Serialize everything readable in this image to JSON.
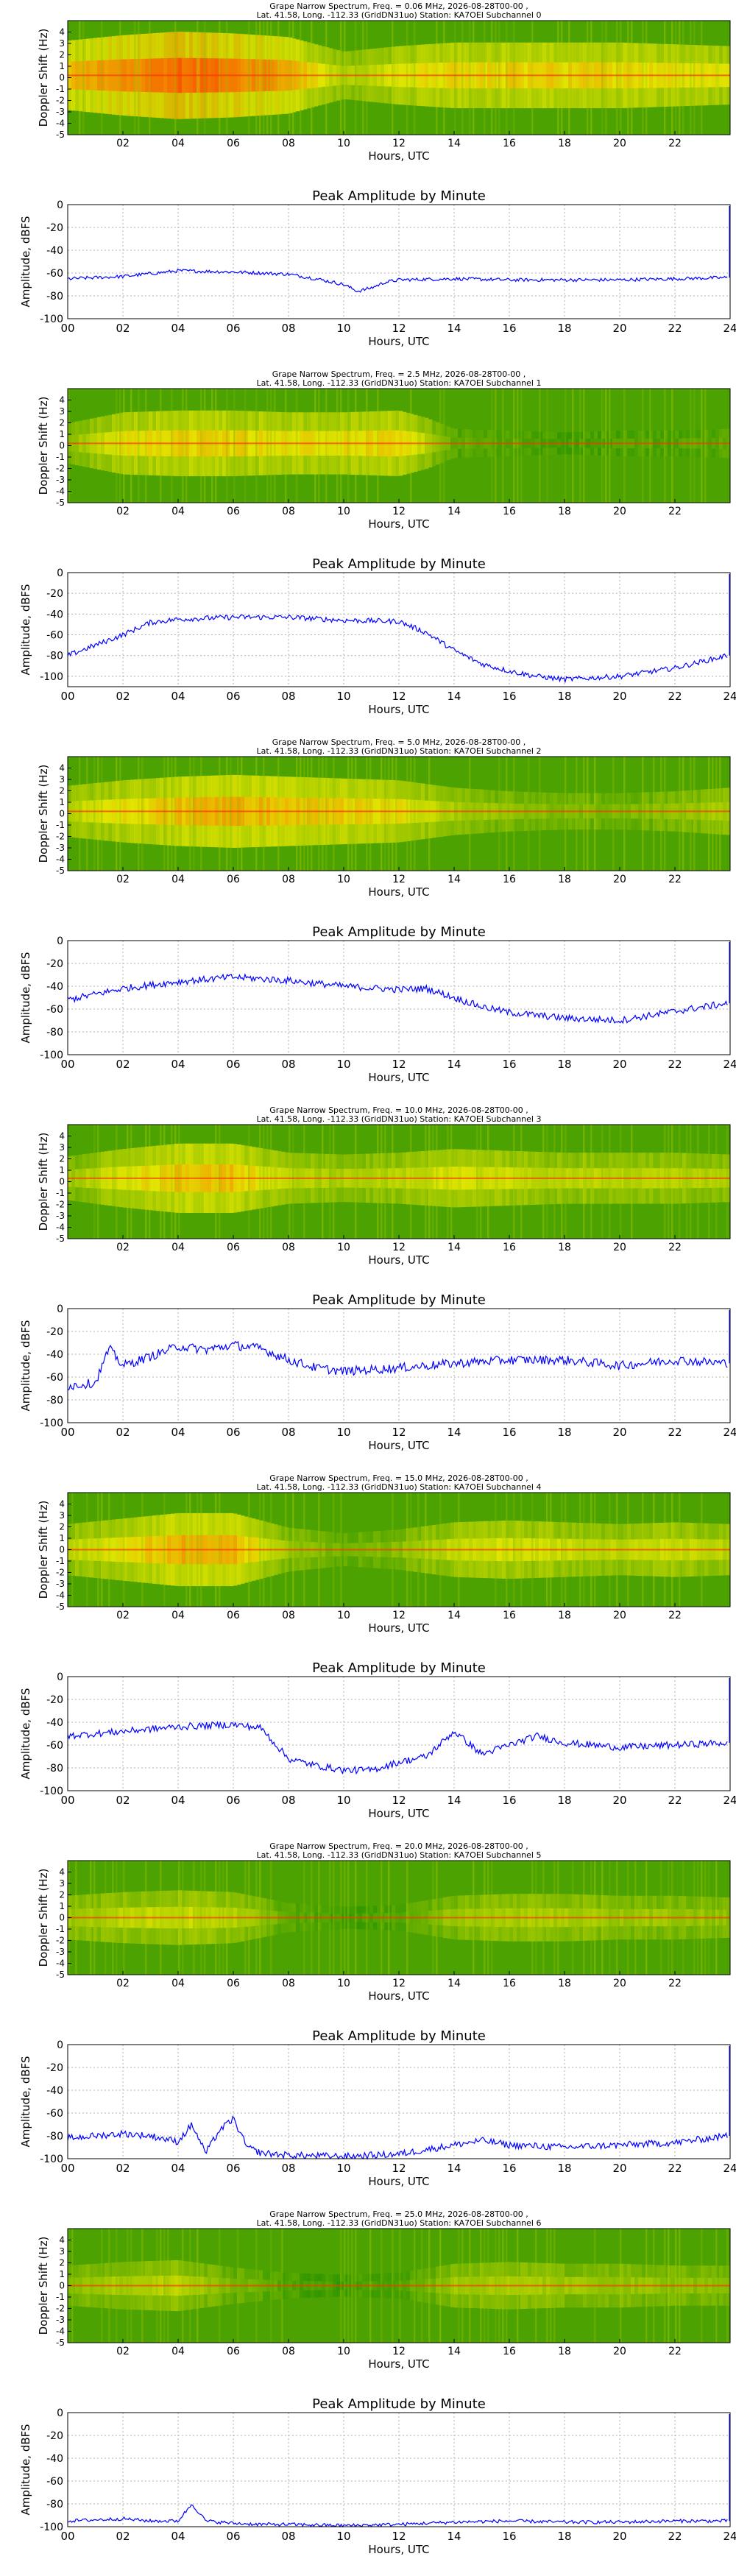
{
  "colors": {
    "line": "#0000ff",
    "grid": "#b0b0b0",
    "spec_low": "#1f8f00",
    "spec_mid": "#e8e800",
    "spec_high": "#ff2000"
  },
  "chart_data": [
    {
      "type": "heatmap",
      "title_line1": "Grape Narrow Spectrum, Freq. = 0.06 MHz, 2026-08-28T00-00 ,",
      "title_line2": "Lat.  41.58, Long. -112.33 (GridDN31uo) Station: KA7OEI Subchannel 0",
      "xlabel": "Hours, UTC",
      "ylabel": "Doppler Shift (Hz)",
      "xticks": [
        "02",
        "04",
        "06",
        "08",
        "10",
        "12",
        "14",
        "16",
        "18",
        "20",
        "22"
      ],
      "yticks": [
        "4",
        "3",
        "2",
        "1",
        "0",
        "-1",
        "-2",
        "-3",
        "-4",
        "-5"
      ],
      "xlim": [
        0,
        24
      ],
      "ylim": [
        -5,
        5
      ],
      "carrier_hz": 0.2,
      "activity": [
        [
          0,
          0.7
        ],
        [
          2,
          0.85
        ],
        [
          4,
          0.95
        ],
        [
          6,
          0.9
        ],
        [
          8,
          0.8
        ],
        [
          10,
          0.4
        ],
        [
          12,
          0.55
        ],
        [
          14,
          0.65
        ],
        [
          16,
          0.65
        ],
        [
          18,
          0.65
        ],
        [
          20,
          0.65
        ],
        [
          22,
          0.6
        ],
        [
          24,
          0.55
        ]
      ]
    },
    {
      "type": "line",
      "title": "Peak Amplitude by Minute",
      "xlabel": "Hours, UTC",
      "ylabel": "Amplitude, dBFS",
      "xticks": [
        "00",
        "02",
        "04",
        "06",
        "08",
        "10",
        "12",
        "14",
        "16",
        "18",
        "20",
        "22",
        "24"
      ],
      "yticks": [
        "0",
        "-20",
        "-40",
        "-60",
        "-80",
        "-100"
      ],
      "xlim": [
        0,
        24
      ],
      "ylim": [
        -100,
        0
      ],
      "series": [
        {
          "x": [
            0,
            2,
            4,
            6,
            8,
            9,
            10,
            10.5,
            11,
            11.5,
            12,
            14,
            16,
            18,
            20,
            22,
            23.9
          ],
          "values": [
            -65,
            -63,
            -58,
            -59,
            -61,
            -65,
            -70,
            -76,
            -73,
            -68,
            -66,
            -65,
            -66,
            -66,
            -66,
            -65,
            -64
          ],
          "noise": 1.5
        }
      ]
    },
    {
      "type": "heatmap",
      "title_line1": "Grape Narrow Spectrum, Freq. = 2.5 MHz, 2026-08-28T00-00 ,",
      "title_line2": "Lat.  41.58, Long. -112.33 (GridDN31uo) Station: KA7OEI Subchannel 1",
      "xlabel": "Hours, UTC",
      "ylabel": "Doppler Shift (Hz)",
      "xticks": [
        "02",
        "04",
        "06",
        "08",
        "10",
        "12",
        "14",
        "16",
        "18",
        "20",
        "22"
      ],
      "yticks": [
        "4",
        "3",
        "2",
        "1",
        "0",
        "-1",
        "-2",
        "-3",
        "-4",
        "-5"
      ],
      "xlim": [
        0,
        24
      ],
      "ylim": [
        -5,
        5
      ],
      "carrier_hz": 0.2,
      "activity": [
        [
          0,
          0.3
        ],
        [
          1,
          0.45
        ],
        [
          2,
          0.6
        ],
        [
          4,
          0.65
        ],
        [
          6,
          0.65
        ],
        [
          8,
          0.6
        ],
        [
          10,
          0.6
        ],
        [
          12,
          0.65
        ],
        [
          13,
          0.45
        ],
        [
          14,
          0.15
        ],
        [
          16,
          0.1
        ],
        [
          18,
          0.05
        ],
        [
          20,
          0.1
        ],
        [
          22,
          0.1
        ],
        [
          24,
          0.15
        ]
      ]
    },
    {
      "type": "line",
      "title": "Peak Amplitude by Minute",
      "xlabel": "Hours, UTC",
      "ylabel": "Amplitude, dBFS",
      "xticks": [
        "00",
        "02",
        "04",
        "06",
        "08",
        "10",
        "12",
        "14",
        "16",
        "18",
        "20",
        "22",
        "24"
      ],
      "yticks": [
        "0",
        "-20",
        "-40",
        "-60",
        "-80",
        "-100"
      ],
      "xlim": [
        0,
        24
      ],
      "ylim": [
        -110,
        0
      ],
      "series": [
        {
          "x": [
            0,
            1,
            2,
            3,
            4,
            6,
            8,
            10,
            12,
            13,
            14,
            15,
            16,
            17,
            18,
            20,
            22,
            23.9
          ],
          "values": [
            -80,
            -70,
            -60,
            -48,
            -45,
            -43,
            -43,
            -46,
            -47,
            -58,
            -75,
            -88,
            -95,
            -100,
            -103,
            -100,
            -92,
            -80
          ],
          "noise": 2.5
        }
      ]
    },
    {
      "type": "heatmap",
      "title_line1": "Grape Narrow Spectrum, Freq. = 5.0 MHz, 2026-08-28T00-00 ,",
      "title_line2": "Lat.  41.58, Long. -112.33 (GridDN31uo) Station: KA7OEI Subchannel 2",
      "xlabel": "Hours, UTC",
      "ylabel": "Doppler Shift (Hz)",
      "xticks": [
        "02",
        "04",
        "06",
        "08",
        "10",
        "12",
        "14",
        "16",
        "18",
        "20",
        "22"
      ],
      "yticks": [
        "4",
        "3",
        "2",
        "1",
        "0",
        "-1",
        "-2",
        "-3",
        "-4",
        "-5"
      ],
      "xlim": [
        0,
        24
      ],
      "ylim": [
        -5,
        5
      ],
      "carrier_hz": 0.2,
      "activity": [
        [
          0,
          0.45
        ],
        [
          2,
          0.6
        ],
        [
          4,
          0.7
        ],
        [
          6,
          0.75
        ],
        [
          8,
          0.7
        ],
        [
          10,
          0.65
        ],
        [
          12,
          0.6
        ],
        [
          14,
          0.4
        ],
        [
          16,
          0.3
        ],
        [
          18,
          0.25
        ],
        [
          20,
          0.25
        ],
        [
          22,
          0.3
        ],
        [
          24,
          0.4
        ]
      ]
    },
    {
      "type": "line",
      "title": "Peak Amplitude by Minute",
      "xlabel": "Hours, UTC",
      "ylabel": "Amplitude, dBFS",
      "xticks": [
        "00",
        "02",
        "04",
        "06",
        "08",
        "10",
        "12",
        "14",
        "16",
        "18",
        "20",
        "22",
        "24"
      ],
      "yticks": [
        "0",
        "-20",
        "-40",
        "-60",
        "-80",
        "-100"
      ],
      "xlim": [
        0,
        24
      ],
      "ylim": [
        -100,
        0
      ],
      "series": [
        {
          "x": [
            0,
            2,
            4,
            6,
            8,
            10,
            12,
            13,
            14,
            15,
            16,
            18,
            20,
            22,
            23.9
          ],
          "values": [
            -52,
            -42,
            -36,
            -32,
            -35,
            -40,
            -43,
            -42,
            -50,
            -58,
            -63,
            -68,
            -70,
            -62,
            -55
          ],
          "noise": 3
        }
      ]
    },
    {
      "type": "heatmap",
      "title_line1": "Grape Narrow Spectrum, Freq. = 10.0 MHz, 2026-08-28T00-00 ,",
      "title_line2": "Lat.  41.58, Long. -112.33 (GridDN31uo) Station: KA7OEI Subchannel 3",
      "xlabel": "Hours, UTC",
      "ylabel": "Doppler Shift (Hz)",
      "xticks": [
        "02",
        "04",
        "06",
        "08",
        "10",
        "12",
        "14",
        "16",
        "18",
        "20",
        "22"
      ],
      "yticks": [
        "4",
        "3",
        "2",
        "1",
        "0",
        "-1",
        "-2",
        "-3",
        "-4",
        "-5"
      ],
      "xlim": [
        0,
        24
      ],
      "ylim": [
        -5,
        5
      ],
      "carrier_hz": 0.3,
      "activity": [
        [
          0,
          0.35
        ],
        [
          2,
          0.55
        ],
        [
          4,
          0.7
        ],
        [
          6,
          0.7
        ],
        [
          8,
          0.45
        ],
        [
          10,
          0.4
        ],
        [
          12,
          0.45
        ],
        [
          14,
          0.55
        ],
        [
          16,
          0.5
        ],
        [
          18,
          0.45
        ],
        [
          20,
          0.45
        ],
        [
          22,
          0.45
        ],
        [
          24,
          0.4
        ]
      ]
    },
    {
      "type": "line",
      "title": "Peak Amplitude by Minute",
      "xlabel": "Hours, UTC",
      "ylabel": "Amplitude, dBFS",
      "xticks": [
        "00",
        "02",
        "04",
        "06",
        "08",
        "10",
        "12",
        "14",
        "16",
        "18",
        "20",
        "22",
        "24"
      ],
      "yticks": [
        "0",
        "-20",
        "-40",
        "-60",
        "-80",
        "-100"
      ],
      "xlim": [
        0,
        24
      ],
      "ylim": [
        -100,
        0
      ],
      "series": [
        {
          "x": [
            0,
            1,
            1.5,
            2,
            3,
            4,
            5,
            6,
            7,
            8,
            9,
            10,
            12,
            14,
            16,
            18,
            20,
            22,
            23.9
          ],
          "values": [
            -68,
            -65,
            -35,
            -50,
            -42,
            -33,
            -36,
            -32,
            -35,
            -45,
            -52,
            -55,
            -52,
            -48,
            -45,
            -45,
            -50,
            -45,
            -48
          ],
          "noise": 4
        }
      ]
    },
    {
      "type": "heatmap",
      "title_line1": "Grape Narrow Spectrum, Freq. = 15.0 MHz, 2026-08-28T00-00 ,",
      "title_line2": "Lat.  41.58, Long. -112.33 (GridDN31uo) Station: KA7OEI Subchannel 4",
      "xlabel": "Hours, UTC",
      "ylabel": "Doppler Shift (Hz)",
      "xticks": [
        "02",
        "04",
        "06",
        "08",
        "10",
        "12",
        "14",
        "16",
        "18",
        "20",
        "22"
      ],
      "yticks": [
        "4",
        "3",
        "2",
        "1",
        "0",
        "-1",
        "-2",
        "-3",
        "-4",
        "-5"
      ],
      "xlim": [
        0,
        24
      ],
      "ylim": [
        -5,
        5
      ],
      "carrier_hz": 0.0,
      "activity": [
        [
          0,
          0.45
        ],
        [
          2,
          0.6
        ],
        [
          4,
          0.75
        ],
        [
          6,
          0.75
        ],
        [
          8,
          0.35
        ],
        [
          10,
          0.2
        ],
        [
          12,
          0.3
        ],
        [
          14,
          0.5
        ],
        [
          16,
          0.55
        ],
        [
          18,
          0.5
        ],
        [
          20,
          0.45
        ],
        [
          22,
          0.5
        ],
        [
          24,
          0.45
        ]
      ]
    },
    {
      "type": "line",
      "title": "Peak Amplitude by Minute",
      "xlabel": "Hours, UTC",
      "ylabel": "Amplitude, dBFS",
      "xticks": [
        "00",
        "02",
        "04",
        "06",
        "08",
        "10",
        "12",
        "14",
        "16",
        "18",
        "20",
        "22",
        "24"
      ],
      "yticks": [
        "0",
        "-20",
        "-40",
        "-60",
        "-80",
        "-100"
      ],
      "xlim": [
        0,
        24
      ],
      "ylim": [
        -100,
        0
      ],
      "series": [
        {
          "x": [
            0,
            2,
            4,
            6,
            7,
            8,
            9,
            10,
            11,
            12,
            13,
            14,
            15,
            16,
            17,
            18,
            20,
            22,
            23.9
          ],
          "values": [
            -52,
            -48,
            -44,
            -42,
            -45,
            -72,
            -78,
            -82,
            -82,
            -75,
            -70,
            -48,
            -68,
            -60,
            -52,
            -58,
            -62,
            -60,
            -58
          ],
          "noise": 3
        }
      ]
    },
    {
      "type": "heatmap",
      "title_line1": "Grape Narrow Spectrum, Freq. = 20.0 MHz, 2026-08-28T00-00 ,",
      "title_line2": "Lat.  41.58, Long. -112.33 (GridDN31uo) Station: KA7OEI Subchannel 5",
      "xlabel": "Hours, UTC",
      "ylabel": "Doppler Shift (Hz)",
      "xticks": [
        "02",
        "04",
        "06",
        "08",
        "10",
        "12",
        "14",
        "16",
        "18",
        "20",
        "22"
      ],
      "yticks": [
        "4",
        "3",
        "2",
        "1",
        "0",
        "-1",
        "-2",
        "-3",
        "-4",
        "-5"
      ],
      "xlim": [
        0,
        24
      ],
      "ylim": [
        -5,
        5
      ],
      "carrier_hz": 0.0,
      "activity": [
        [
          0,
          0.35
        ],
        [
          2,
          0.45
        ],
        [
          4,
          0.5
        ],
        [
          6,
          0.45
        ],
        [
          8,
          0.15
        ],
        [
          10,
          0.05
        ],
        [
          12,
          0.1
        ],
        [
          14,
          0.35
        ],
        [
          16,
          0.4
        ],
        [
          18,
          0.4
        ],
        [
          20,
          0.35
        ],
        [
          22,
          0.35
        ],
        [
          24,
          0.3
        ]
      ]
    },
    {
      "type": "line",
      "title": "Peak Amplitude by Minute",
      "xlabel": "Hours, UTC",
      "ylabel": "Amplitude, dBFS",
      "xticks": [
        "00",
        "02",
        "04",
        "06",
        "08",
        "10",
        "12",
        "14",
        "16",
        "18",
        "20",
        "22",
        "24"
      ],
      "yticks": [
        "0",
        "-20",
        "-40",
        "-60",
        "-80",
        "-100"
      ],
      "xlim": [
        0,
        24
      ],
      "ylim": [
        -100,
        0
      ],
      "series": [
        {
          "x": [
            0,
            2,
            3,
            4,
            4.5,
            5,
            5.5,
            6,
            6.5,
            7,
            8,
            10,
            12,
            14,
            15,
            16,
            18,
            20,
            22,
            23.9
          ],
          "values": [
            -82,
            -78,
            -80,
            -85,
            -70,
            -95,
            -75,
            -65,
            -90,
            -95,
            -97,
            -98,
            -96,
            -88,
            -84,
            -88,
            -90,
            -88,
            -86,
            -80
          ],
          "noise": 3
        }
      ]
    },
    {
      "type": "heatmap",
      "title_line1": "Grape Narrow Spectrum, Freq. = 25.0 MHz, 2026-08-28T00-00 ,",
      "title_line2": "Lat.  41.58, Long. -112.33 (GridDN31uo) Station: KA7OEI Subchannel 6",
      "xlabel": "Hours, UTC",
      "ylabel": "Doppler Shift (Hz)",
      "xticks": [
        "02",
        "04",
        "06",
        "08",
        "10",
        "12",
        "14",
        "16",
        "18",
        "20",
        "22"
      ],
      "yticks": [
        "4",
        "3",
        "2",
        "1",
        "0",
        "-1",
        "-2",
        "-3",
        "-4",
        "-5"
      ],
      "xlim": [
        0,
        24
      ],
      "ylim": [
        -5,
        5
      ],
      "carrier_hz": 0.0,
      "activity": [
        [
          0,
          0.3
        ],
        [
          2,
          0.4
        ],
        [
          4,
          0.45
        ],
        [
          6,
          0.25
        ],
        [
          8,
          0.1
        ],
        [
          10,
          0.05
        ],
        [
          12,
          0.1
        ],
        [
          14,
          0.35
        ],
        [
          16,
          0.4
        ],
        [
          18,
          0.35
        ],
        [
          20,
          0.35
        ],
        [
          22,
          0.3
        ],
        [
          24,
          0.3
        ]
      ]
    },
    {
      "type": "line",
      "title": "Peak Amplitude by Minute",
      "xlabel": "Hours, UTC",
      "ylabel": "Amplitude, dBFS",
      "xticks": [
        "00",
        "02",
        "04",
        "06",
        "08",
        "10",
        "12",
        "14",
        "16",
        "18",
        "20",
        "22",
        "24"
      ],
      "yticks": [
        "0",
        "-20",
        "-40",
        "-60",
        "-80",
        "-100"
      ],
      "xlim": [
        0,
        24
      ],
      "ylim": [
        -100,
        0
      ],
      "series": [
        {
          "x": [
            0,
            2,
            3,
            4,
            4.5,
            5,
            6,
            7,
            8,
            10,
            12,
            14,
            16,
            18,
            20,
            22,
            23.9
          ],
          "values": [
            -95,
            -93,
            -95,
            -95,
            -80,
            -95,
            -97,
            -98,
            -98,
            -99,
            -98,
            -96,
            -95,
            -96,
            -96,
            -95,
            -95
          ],
          "noise": 1.5
        }
      ]
    }
  ]
}
